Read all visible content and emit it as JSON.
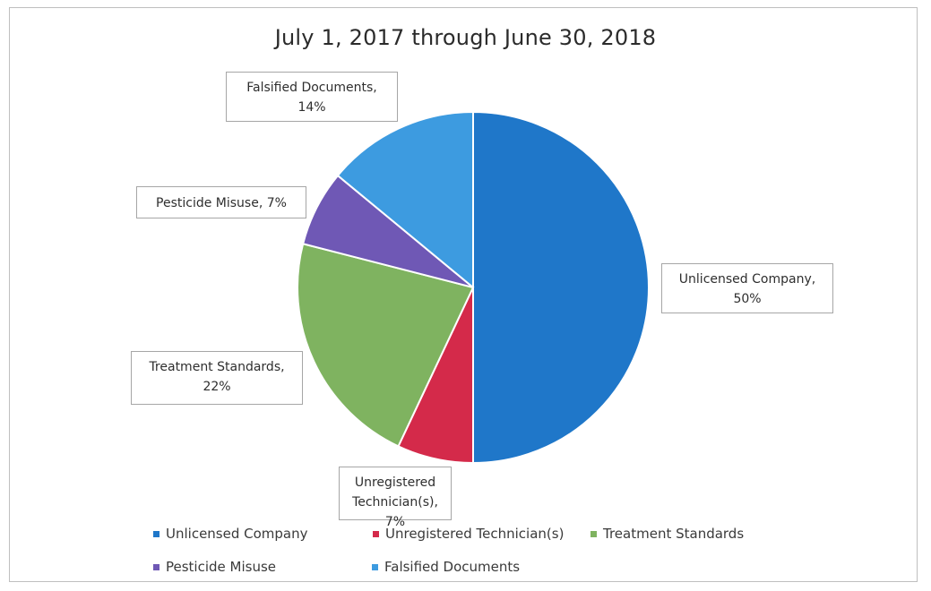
{
  "chart_data": {
    "type": "pie",
    "title": "July 1, 2017 through June 30, 2018",
    "slices": [
      {
        "name": "Unlicensed Company",
        "value": 50,
        "label_line1": "Unlicensed Company,",
        "label_line2": "50%",
        "color": "#1f77c9"
      },
      {
        "name": "Unregistered Technician(s)",
        "value": 7,
        "label_line1": "Unregistered",
        "label_line2": "Technician(s), 7%",
        "color": "#d42a4a"
      },
      {
        "name": "Treatment Standards",
        "value": 22,
        "label_line1": "Treatment Standards,",
        "label_line2": "22%",
        "color": "#7fb360"
      },
      {
        "name": "Pesticide Misuse",
        "value": 7,
        "label_line1": "Pesticide Misuse, 7%",
        "label_line2": "",
        "color": "#6f58b5"
      },
      {
        "name": "Falsified Documents",
        "value": 14,
        "label_line1": "Falsified Documents,",
        "label_line2": "14%",
        "color": "#3d9be0"
      }
    ],
    "legend": {
      "placement": "bottom",
      "items": [
        "Unlicensed Company",
        "Unregistered Technician(s)",
        "Treatment Standards",
        "Pesticide Misuse",
        "Falsified Documents"
      ]
    }
  }
}
